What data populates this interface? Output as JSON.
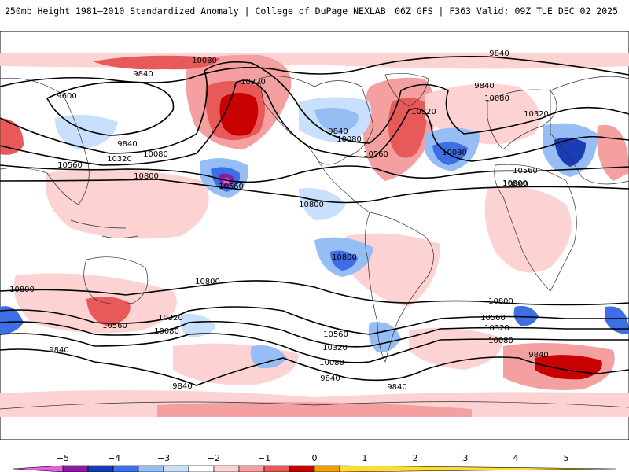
{
  "header": {
    "title_left": "250mb Height 1981–2010 Standardized Anomaly | College of DuPage NEXLAB",
    "title_right": "06Z GFS | F363 Valid: 09Z TUE DEC 02 2025"
  },
  "contour_labels": [
    {
      "id": "c10080-npac",
      "text": "10080"
    },
    {
      "id": "c9840-nwpac",
      "text": "9840"
    },
    {
      "id": "c9600-nwpac",
      "text": "9600"
    },
    {
      "id": "c10320-npac",
      "text": "10320"
    },
    {
      "id": "c9840-top",
      "text": "9840"
    },
    {
      "id": "c9840-atl",
      "text": "9840"
    },
    {
      "id": "c10080-eur",
      "text": "10080"
    },
    {
      "id": "c10320-atl",
      "text": "10320"
    },
    {
      "id": "c10320-eur",
      "text": "10320"
    },
    {
      "id": "c9840-ca",
      "text": "9840"
    },
    {
      "id": "c10080-us",
      "text": "10080"
    },
    {
      "id": "c10560-us",
      "text": "10560"
    },
    {
      "id": "c10080-atl2",
      "text": "10080"
    },
    {
      "id": "c9840-asia",
      "text": "9840"
    },
    {
      "id": "c10080-asia",
      "text": "10080"
    },
    {
      "id": "c10320-asia",
      "text": "10320"
    },
    {
      "id": "c10560-wpac",
      "text": "10560"
    },
    {
      "id": "c10800-wpac",
      "text": "10800"
    },
    {
      "id": "c10560-pac",
      "text": "10560"
    },
    {
      "id": "c10800-epac",
      "text": "10800"
    },
    {
      "id": "c10560-eur",
      "text": "10560"
    },
    {
      "id": "c10800-afr",
      "text": "10800"
    },
    {
      "id": "c10800-spac",
      "text": "10800"
    },
    {
      "id": "c10800-sio",
      "text": "10800"
    },
    {
      "id": "c10800-satl",
      "text": "10800"
    },
    {
      "id": "c10560-aus",
      "text": "10560"
    },
    {
      "id": "c10320-aus",
      "text": "10320"
    },
    {
      "id": "c10080-aus",
      "text": "10080"
    },
    {
      "id": "c9840-sio",
      "text": "9840"
    },
    {
      "id": "c10560-satl",
      "text": "10560"
    },
    {
      "id": "c10560-ind",
      "text": "10560"
    },
    {
      "id": "c10320-ind",
      "text": "10320"
    },
    {
      "id": "c10320-sam",
      "text": "10320"
    },
    {
      "id": "c10080-ind",
      "text": "10080"
    },
    {
      "id": "c10080-sam",
      "text": "10080"
    },
    {
      "id": "c9840-ind",
      "text": "9840"
    },
    {
      "id": "c9840-sam",
      "text": "9840"
    },
    {
      "id": "c9840-sam2",
      "text": "9840"
    },
    {
      "id": "c9840-spac",
      "text": "9840"
    },
    {
      "id": "c10800-natl",
      "text": "10800"
    },
    {
      "id": "c10800-pac2",
      "text": "10800"
    }
  ],
  "colorbar": {
    "ticks": [
      "−5",
      "−4",
      "−3",
      "−2",
      "−1",
      "0",
      "1",
      "2",
      "3",
      "4",
      "5"
    ],
    "colors": [
      "#e060e0",
      "#8c1aa0",
      "#1a3cb4",
      "#3e6ee6",
      "#96bef5",
      "#c8e0fc",
      "#ffffff",
      "#fcd2d2",
      "#f5a0a0",
      "#e85a5a",
      "#c80000",
      "#f0a000",
      "#ffdc32"
    ]
  }
}
